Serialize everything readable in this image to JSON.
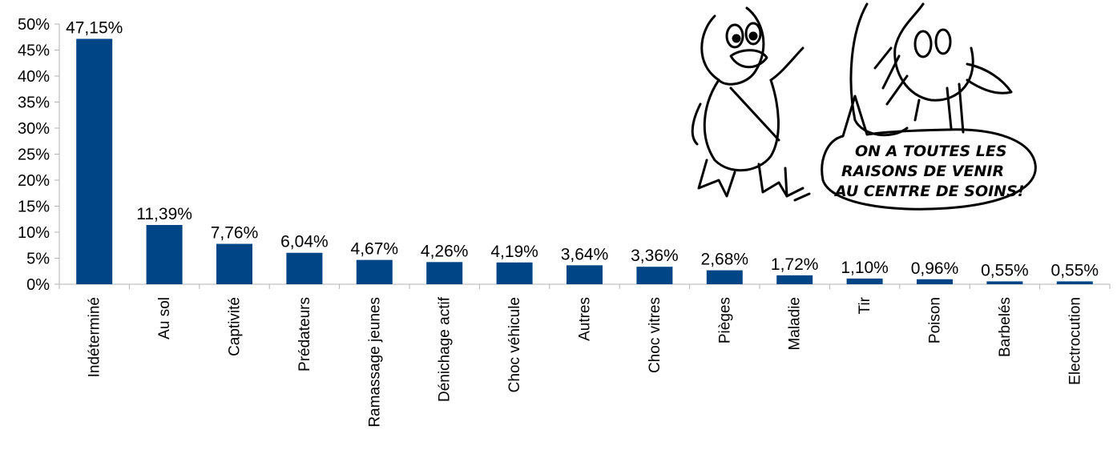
{
  "chart_data": {
    "type": "bar",
    "categories": [
      "Indéterminé",
      "Au sol",
      "Captivité",
      "Prédateurs",
      "Ramassage jeunes",
      "Dénichage actif",
      "Choc véhicule",
      "Autres",
      "Choc vitres",
      "Pièges",
      "Maladie",
      "Tir",
      "Poison",
      "Barbelés",
      "Electrocution"
    ],
    "values": [
      47.15,
      11.39,
      7.76,
      6.04,
      4.67,
      4.26,
      4.19,
      3.64,
      3.36,
      2.68,
      1.72,
      1.1,
      0.96,
      0.55,
      0.55
    ],
    "value_labels": [
      "47,15%",
      "11,39%",
      "7,76%",
      "6,04%",
      "4,67%",
      "4,26%",
      "4,19%",
      "3,64%",
      "3,36%",
      "2,68%",
      "1,72%",
      "1,10%",
      "0,96%",
      "0,55%",
      "0,55%"
    ],
    "y_ticks": [
      "0%",
      "5%",
      "10%",
      "15%",
      "20%",
      "25%",
      "30%",
      "35%",
      "40%",
      "45%",
      "50%"
    ],
    "ylim": [
      0,
      50
    ],
    "grid": false,
    "bar_color": "#004586",
    "title": "",
    "xlabel": "",
    "ylabel": ""
  },
  "cartoon": {
    "bubble_lines": [
      "ON A TOUTES LES",
      "RAISONS DE VENIR",
      "AU CENTRE DE SOINS!"
    ]
  }
}
